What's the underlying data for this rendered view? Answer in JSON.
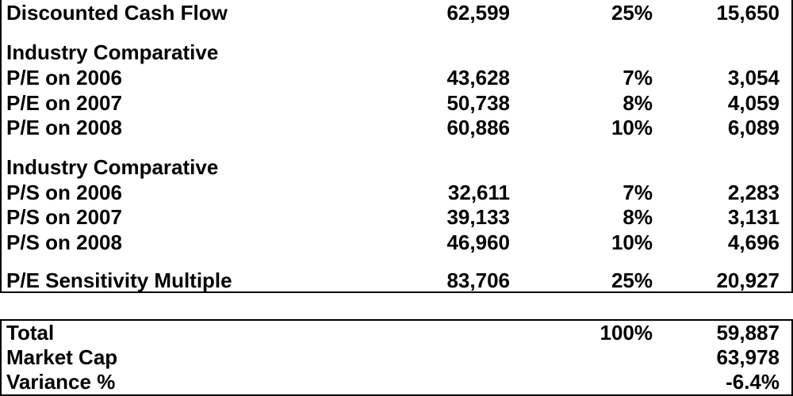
{
  "valuation": {
    "rows": [
      {
        "label": "Discounted Cash Flow",
        "value": "62,599",
        "weight": "25%",
        "weighted": "15,650"
      },
      {
        "label": "Industry Comparative",
        "value": "",
        "weight": "",
        "weighted": ""
      },
      {
        "label": "P/E on 2006",
        "value": "43,628",
        "weight": "7%",
        "weighted": "3,054"
      },
      {
        "label": "P/E on 2007",
        "value": "50,738",
        "weight": "8%",
        "weighted": "4,059"
      },
      {
        "label": "P/E on 2008",
        "value": "60,886",
        "weight": "10%",
        "weighted": "6,089"
      },
      {
        "label": "Industry Comparative",
        "value": "",
        "weight": "",
        "weighted": ""
      },
      {
        "label": "P/S on 2006",
        "value": "32,611",
        "weight": "7%",
        "weighted": "2,283"
      },
      {
        "label": "P/S on 2007",
        "value": "39,133",
        "weight": "8%",
        "weighted": "3,131"
      },
      {
        "label": "P/S on 2008",
        "value": "46,960",
        "weight": "10%",
        "weighted": "4,696"
      },
      {
        "label": "P/E Sensitivity Multiple",
        "value": "83,706",
        "weight": "25%",
        "weighted": "20,927"
      }
    ]
  },
  "summary": {
    "rows": [
      {
        "label": "Total",
        "weight": "100%",
        "weighted": "59,887"
      },
      {
        "label": "Market Cap",
        "weight": "",
        "weighted": "63,978"
      },
      {
        "label": "Variance %",
        "weight": "",
        "weighted": "-6.4%"
      }
    ]
  }
}
